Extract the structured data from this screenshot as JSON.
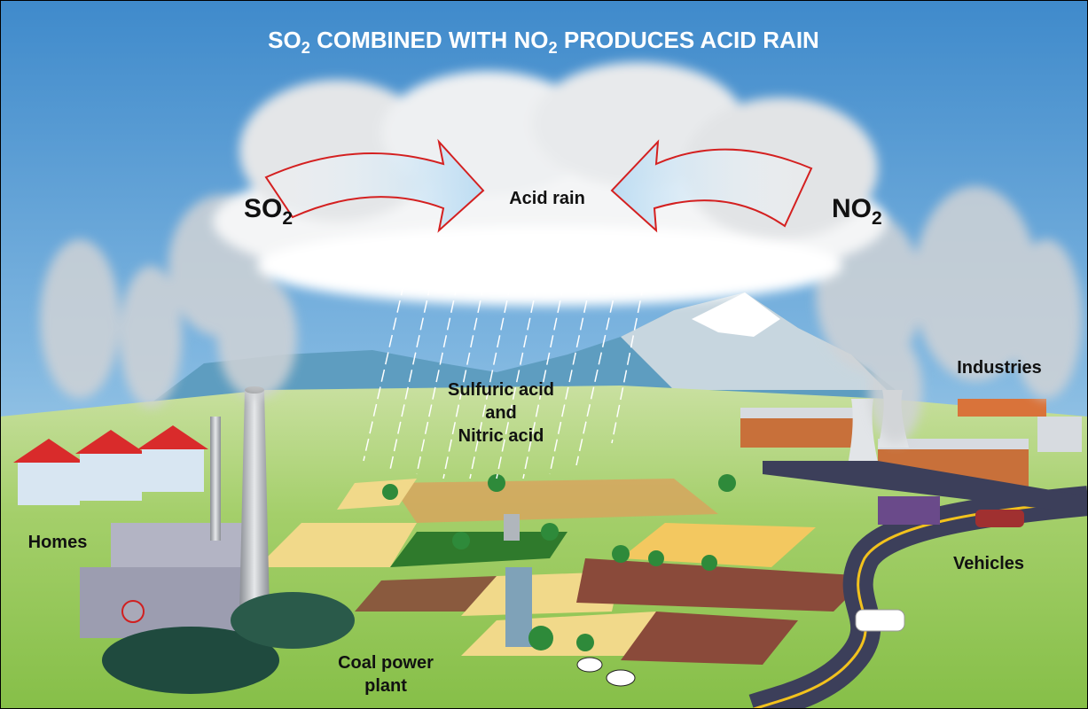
{
  "title": [
    "SO",
    "2",
    " COMBINED WITH NO",
    "2",
    " PRODUCES ACID RAIN"
  ],
  "labels": {
    "so2": [
      "SO",
      "2"
    ],
    "no2": [
      "NO",
      "2"
    ],
    "acid_rain": "Acid rain",
    "acids": [
      "Sulfuric acid",
      "and",
      "Nitric acid"
    ],
    "industries": "Industries",
    "homes": "Homes",
    "vehicles": "Vehicles",
    "coal_plant": [
      "Coal power",
      "plant"
    ]
  }
}
